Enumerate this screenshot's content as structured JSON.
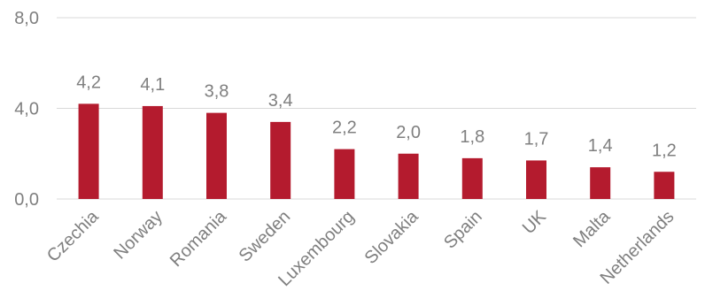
{
  "chart_data": {
    "type": "bar",
    "categories": [
      "Czechia",
      "Norway",
      "Romania",
      "Sweden",
      "Luxembourg",
      "Slovakia",
      "Spain",
      "UK",
      "Malta",
      "Netherlands"
    ],
    "values": [
      4.2,
      4.1,
      3.8,
      3.4,
      2.2,
      2.0,
      1.8,
      1.7,
      1.4,
      1.2
    ],
    "value_labels": [
      "4,2",
      "4,1",
      "3,8",
      "3,4",
      "2,2",
      "2,0",
      "1,8",
      "1,7",
      "1,4",
      "1,2"
    ],
    "ylim": [
      0,
      8
    ],
    "yticks": [
      0,
      4,
      8
    ],
    "ytick_labels": [
      "0,0",
      "4,0",
      "8,0"
    ],
    "grid": true,
    "bar_color": "#b41b2e",
    "grid_color": "#d9d9d9",
    "text_color": "#7f7f7f"
  }
}
